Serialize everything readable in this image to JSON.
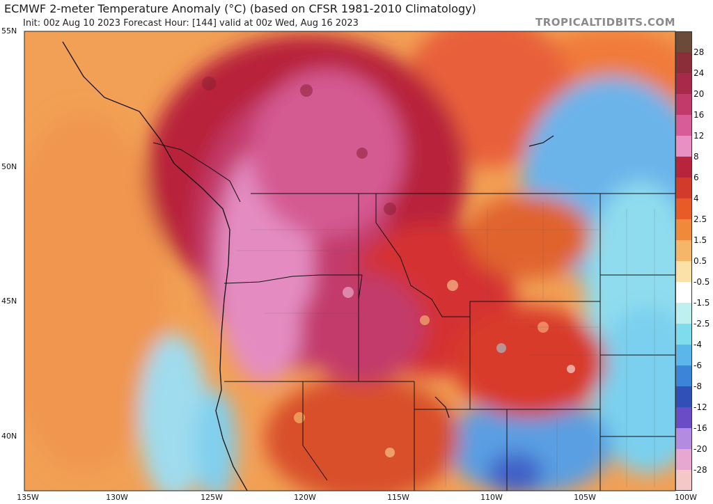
{
  "header": {
    "title": "ECMWF 2-meter Temperature Anomaly (°C) (based on CFSR 1981-2010 Climatology)",
    "subtitle": "Init: 00z Aug 10 2023   Forecast Hour: [144]   valid at 00z Wed, Aug 16 2023",
    "credit": "TROPICALTIDBITS.COM"
  },
  "axes": {
    "lat_labels": [
      "55N",
      "50N",
      "45N",
      "40N"
    ],
    "lon_labels": [
      "135W",
      "130W",
      "125W",
      "120W",
      "115W",
      "110W",
      "105W",
      "100W"
    ]
  },
  "colorbar": {
    "labels": [
      "28",
      "24",
      "20",
      "16",
      "12",
      "8",
      "6",
      "4",
      "2.5",
      "1.5",
      "0.5",
      "-0.5",
      "-1.5",
      "-2.5",
      "-4",
      "-6",
      "-8",
      "-12",
      "-16",
      "-20",
      "-28"
    ],
    "colors": [
      "#6b4a3a",
      "#8c2e3a",
      "#a8294a",
      "#c23a6a",
      "#d85c98",
      "#e890c4",
      "#b8243b",
      "#d23a2a",
      "#e85a26",
      "#f08a3a",
      "#f5b66a",
      "#fbe0a8",
      "#ffffff",
      "#bff0f0",
      "#7fdcec",
      "#5bb6ea",
      "#3c84d8",
      "#3050b8",
      "#6a4cc6",
      "#b38be0",
      "#e6a8d0",
      "#f5c8c8"
    ]
  },
  "colors": {
    "ocean_warm": "#f2a560",
    "coast_cool": "#8fd8ee",
    "interior_hot": "#c22f4a",
    "interior_very_hot": "#e98cc3",
    "plains_cool": "#5aa9e6"
  }
}
